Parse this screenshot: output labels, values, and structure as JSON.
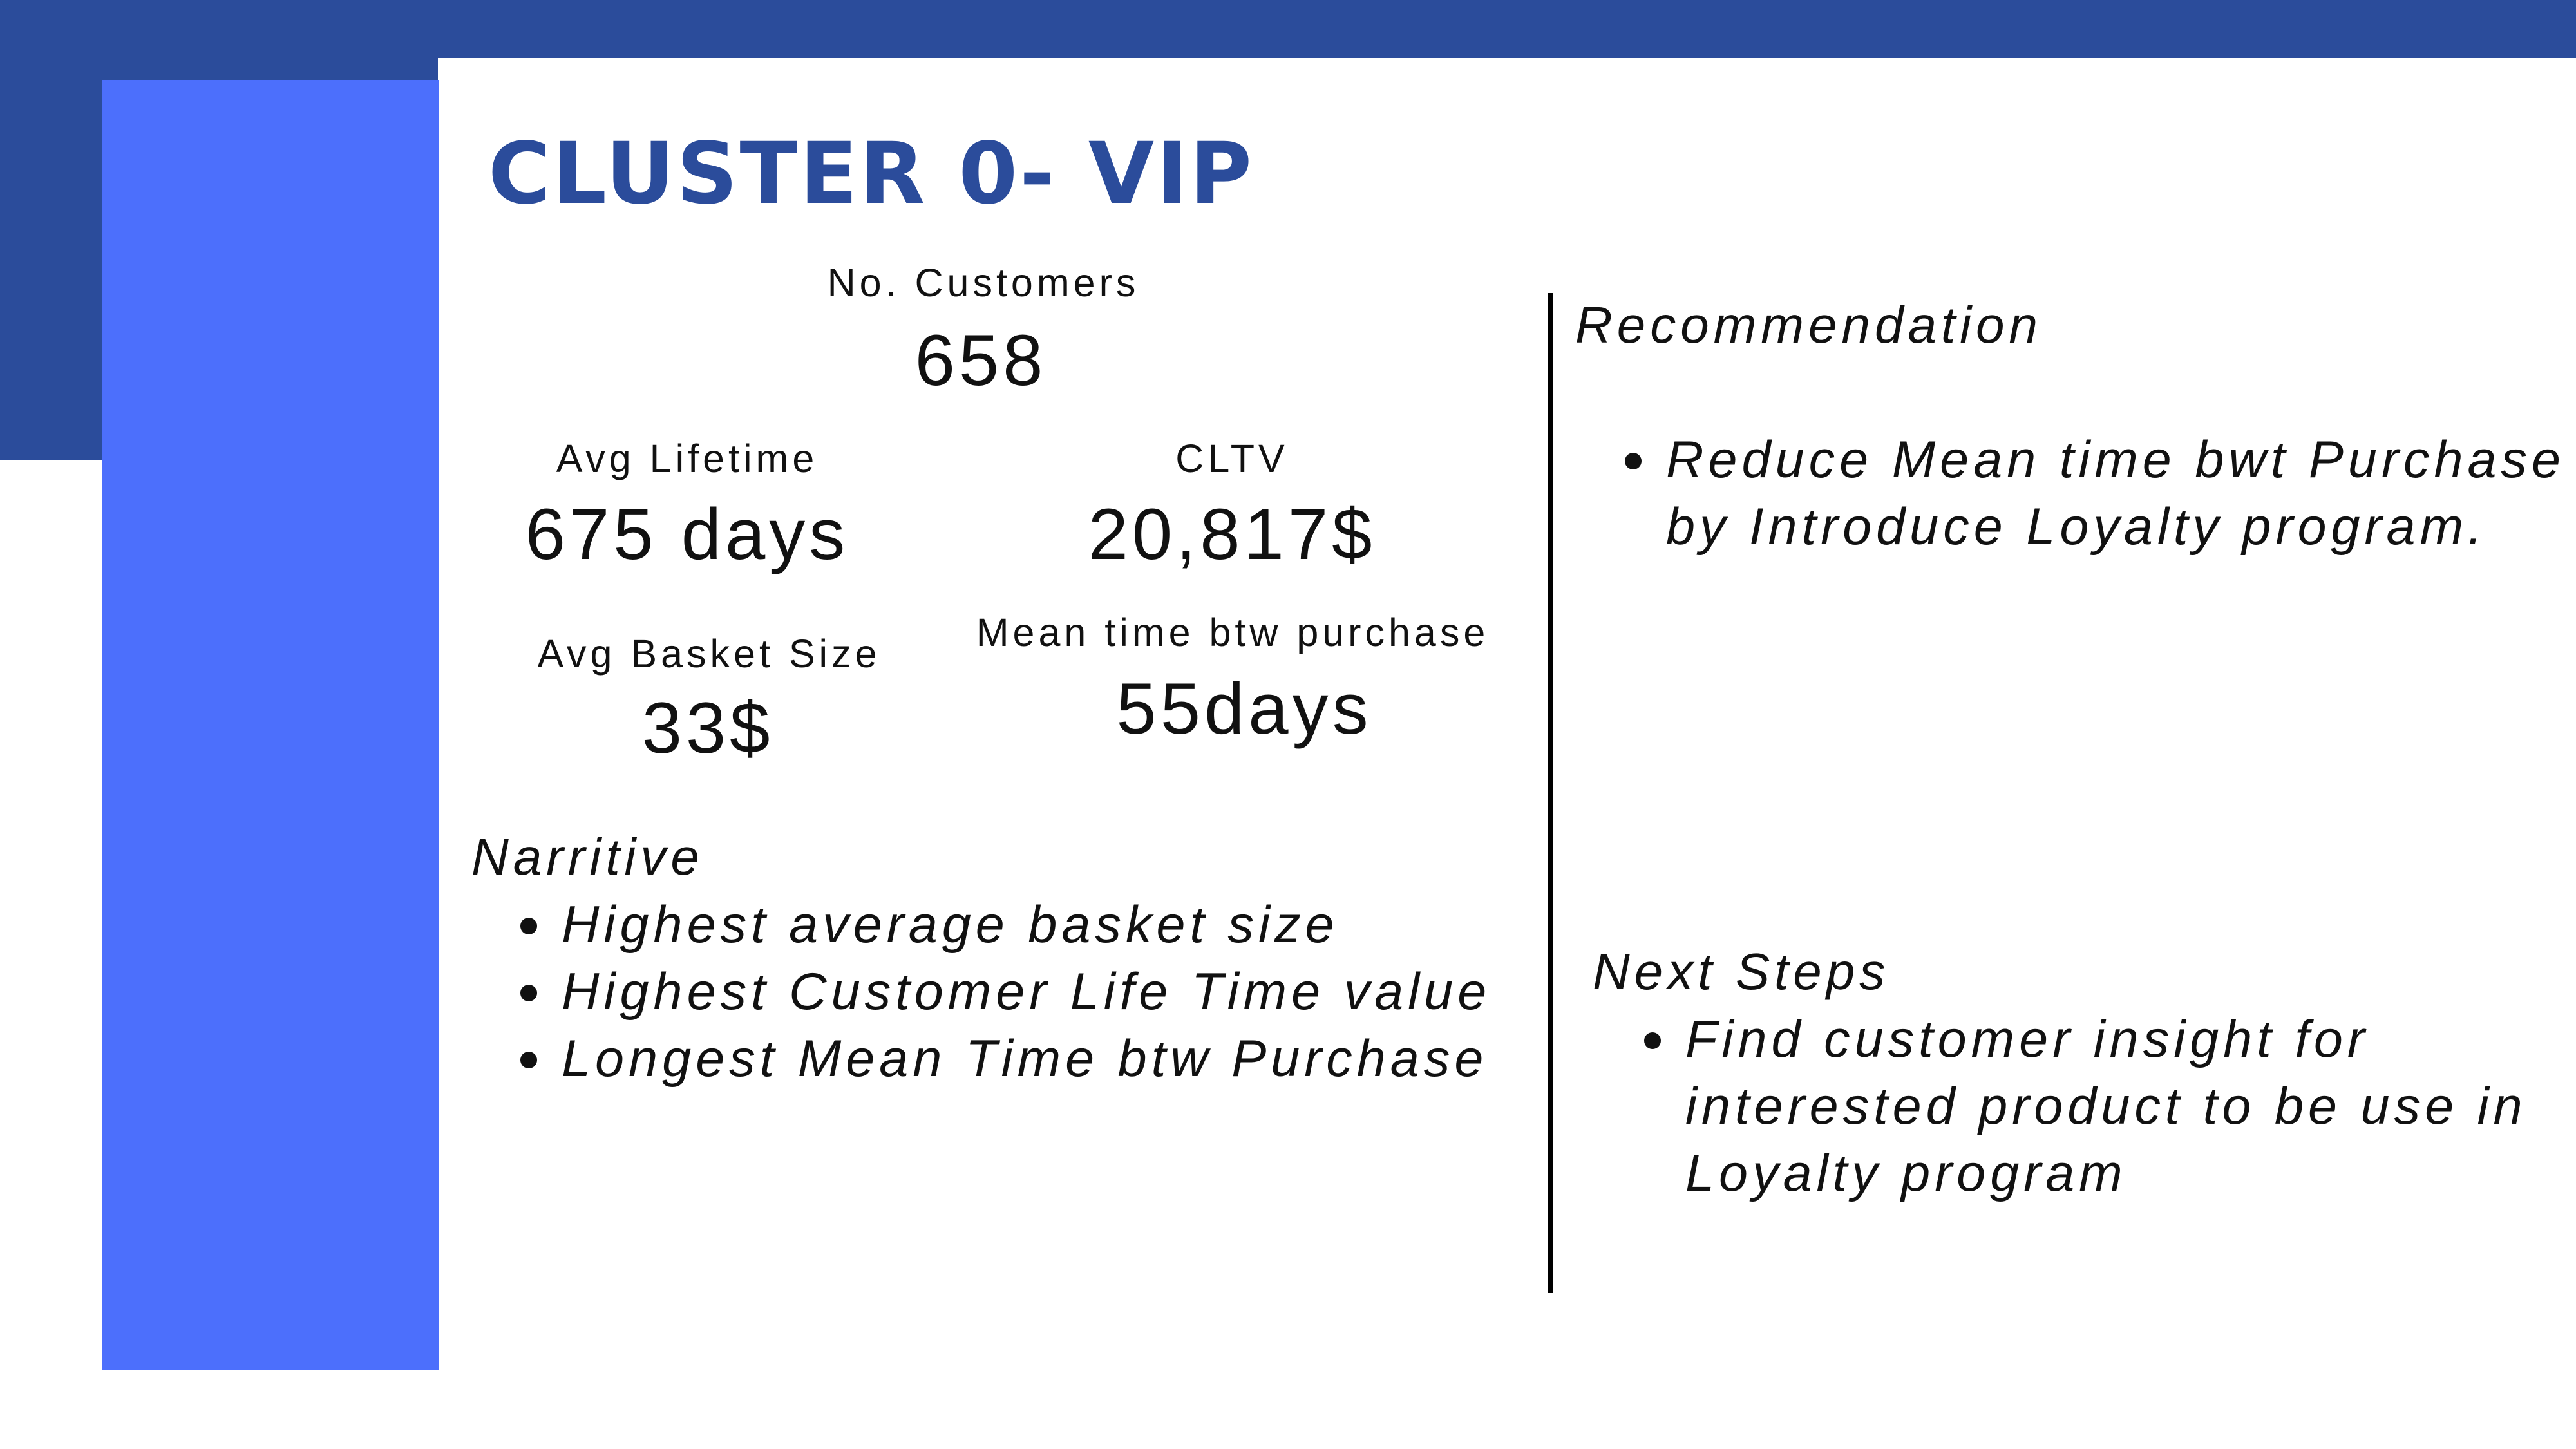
{
  "title": "CLUSTER 0- VIP",
  "colors": {
    "primary_dark_blue": "#2b4c9b",
    "accent_blue": "#4c6ffc",
    "text": "#111111",
    "background": "#ffffff"
  },
  "metrics": {
    "customers": {
      "label": "No. Customers",
      "value": "658"
    },
    "avg_lifetime": {
      "label": "Avg Lifetime",
      "value": "675 days"
    },
    "cltv": {
      "label": "CLTV",
      "value": "20,817$"
    },
    "avg_basket_size": {
      "label": "Avg Basket Size",
      "value": "33$"
    },
    "mean_time": {
      "label": "Mean time btw purchase",
      "value": "55days"
    }
  },
  "narrative": {
    "heading": "Narritive",
    "items": [
      "Highest average basket size",
      "Highest Customer Life Time value",
      "Longest Mean Time btw Purchase"
    ]
  },
  "recommendation": {
    "heading": "Recommendation",
    "items": [
      [
        "Reduce Mean time bwt Purchase",
        "by Introduce Loyalty program."
      ]
    ]
  },
  "next_steps": {
    "heading": "Next Steps",
    "items": [
      [
        "Find customer insight for",
        "interested product to be use in",
        "Loyalty program"
      ]
    ]
  }
}
